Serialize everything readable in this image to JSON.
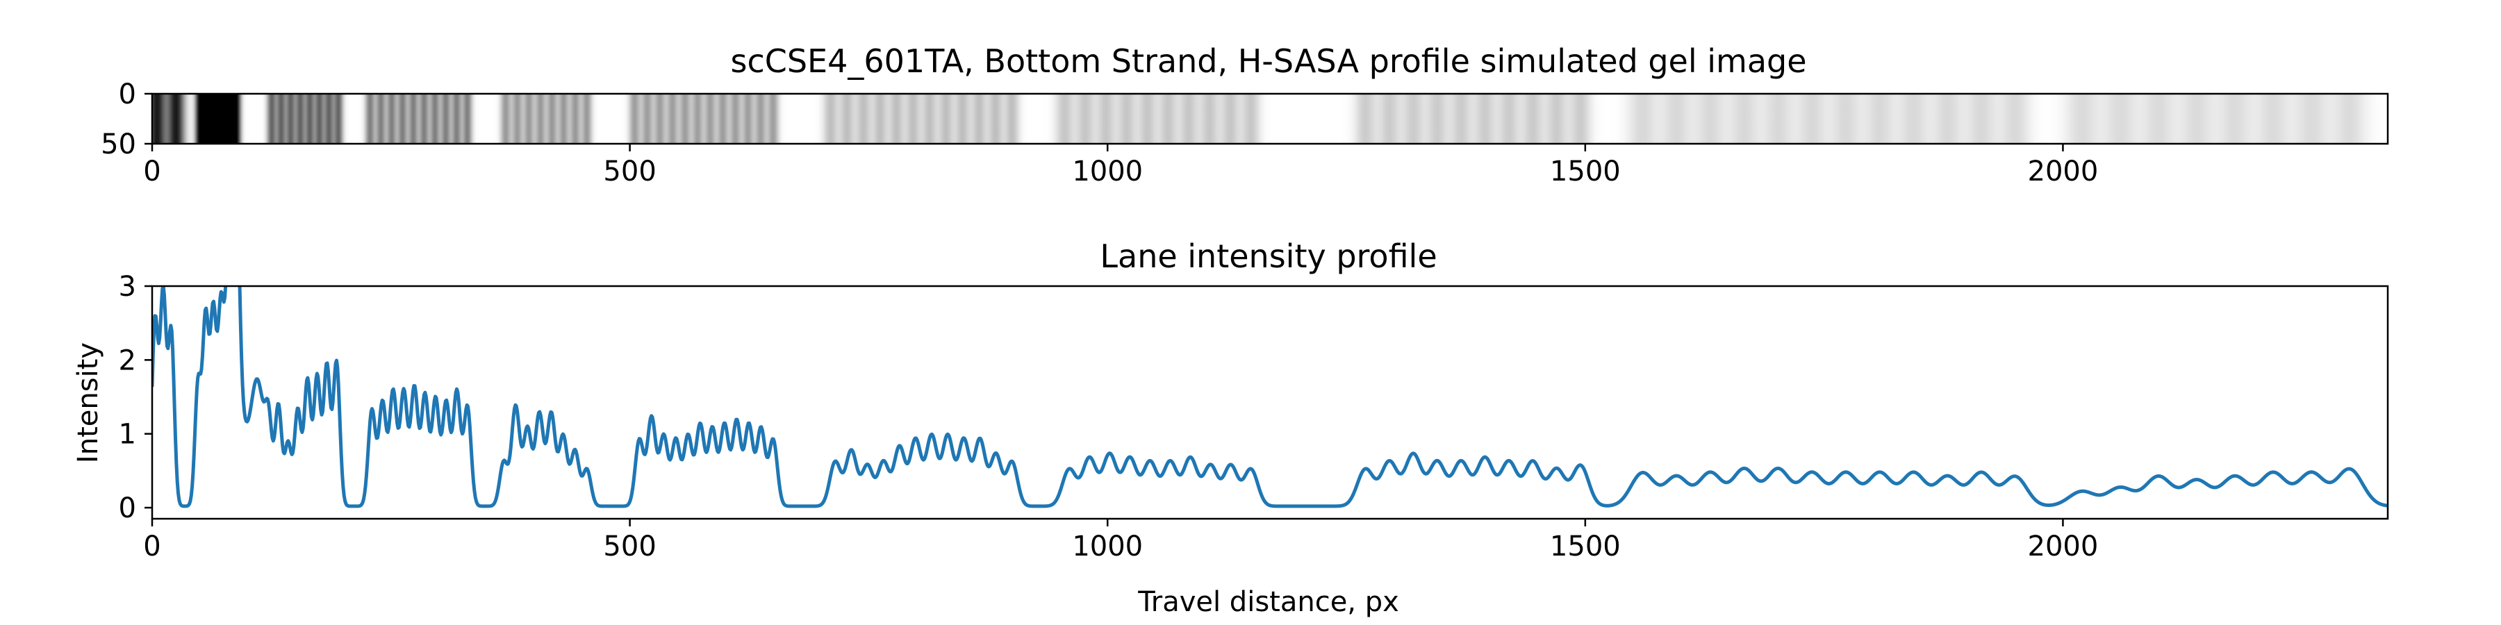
{
  "chart_data": [
    {
      "type": "heatmap",
      "title": "scCSE4_601TA, Bottom Strand, H-SASA profile simulated gel image",
      "xlim": [
        0,
        2340
      ],
      "ylim": [
        50,
        0
      ],
      "x_ticks": [
        0,
        500,
        1000,
        1500,
        2000
      ],
      "y_ticks": [
        0,
        50
      ],
      "colormap": "gray_r",
      "band_groups": [
        {
          "start": 5,
          "end": 25,
          "count": 2,
          "peak": 0.9
        },
        {
          "start": 50,
          "end": 88,
          "count": 6,
          "peak": 0.95
        },
        {
          "start": 125,
          "end": 195,
          "count": 8,
          "peak": 0.6
        },
        {
          "start": 228,
          "end": 330,
          "count": 10,
          "peak": 0.5
        },
        {
          "start": 370,
          "end": 455,
          "count": 8,
          "peak": 0.4
        },
        {
          "start": 505,
          "end": 650,
          "count": 12,
          "peak": 0.38
        },
        {
          "start": 710,
          "end": 900,
          "count": 12,
          "peak": 0.25
        },
        {
          "start": 955,
          "end": 1150,
          "count": 10,
          "peak": 0.22
        },
        {
          "start": 1270,
          "end": 1495,
          "count": 10,
          "peak": 0.2
        },
        {
          "start": 1560,
          "end": 1950,
          "count": 12,
          "peak": 0.15
        },
        {
          "start": 2020,
          "end": 2300,
          "count": 8,
          "peak": 0.14
        }
      ]
    },
    {
      "type": "line",
      "title": "Lane intensity profile",
      "xlabel": "Travel distance, px",
      "ylabel": "Intensity",
      "xlim": [
        0,
        2340
      ],
      "ylim": [
        -0.15,
        3.0
      ],
      "x_ticks": [
        0,
        500,
        1000,
        1500,
        2000
      ],
      "y_ticks": [
        0,
        1,
        2,
        3
      ],
      "color": "#1f77b4",
      "groups": [
        {
          "start": 3,
          "end": 20,
          "peaks": [
            2.5,
            2.85,
            2.35
          ]
        },
        {
          "start": 48,
          "end": 88,
          "peaks": [
            1.65,
            2.5,
            2.55,
            2.5,
            2.65,
            2.75
          ]
        },
        {
          "start": 88,
          "end": 110,
          "peaks": [
            1.65,
            1.7
          ]
        },
        {
          "start": 122,
          "end": 193,
          "peaks": [
            0.9,
            1.35,
            0.85,
            1.3,
            1.7,
            1.75,
            1.9,
            1.95
          ]
        },
        {
          "start": 230,
          "end": 330,
          "peaks": [
            1.3,
            1.4,
            1.55,
            1.55,
            1.6,
            1.5,
            1.45,
            1.4,
            1.55,
            1.35
          ]
        },
        {
          "start": 368,
          "end": 455,
          "peaks": [
            0.6,
            1.35,
            1.05,
            1.25,
            1.25,
            0.95,
            0.75,
            0.5
          ]
        },
        {
          "start": 510,
          "end": 650,
          "peaks": [
            0.9,
            1.2,
            0.95,
            0.9,
            0.95,
            1.1,
            1.05,
            1.1,
            1.15,
            1.1,
            1.05,
            0.9
          ]
        },
        {
          "start": 715,
          "end": 900,
          "peaks": [
            0.6,
            0.75,
            0.55,
            0.6,
            0.8,
            0.9,
            0.95,
            0.95,
            0.9,
            0.9,
            0.7,
            0.6
          ]
        },
        {
          "start": 960,
          "end": 1150,
          "peaks": [
            0.5,
            0.65,
            0.7,
            0.65,
            0.6,
            0.6,
            0.65,
            0.55,
            0.55,
            0.5
          ]
        },
        {
          "start": 1270,
          "end": 1495,
          "peaks": [
            0.5,
            0.6,
            0.7,
            0.6,
            0.6,
            0.65,
            0.6,
            0.6,
            0.5,
            0.55
          ]
        },
        {
          "start": 1560,
          "end": 1950,
          "peaks": [
            0.45,
            0.4,
            0.45,
            0.5,
            0.5,
            0.45,
            0.45,
            0.45,
            0.45,
            0.4,
            0.45,
            0.4
          ]
        },
        {
          "start": 2020,
          "end": 2300,
          "peaks": [
            0.2,
            0.25,
            0.4,
            0.35,
            0.4,
            0.45,
            0.45,
            0.5
          ]
        }
      ]
    }
  ]
}
